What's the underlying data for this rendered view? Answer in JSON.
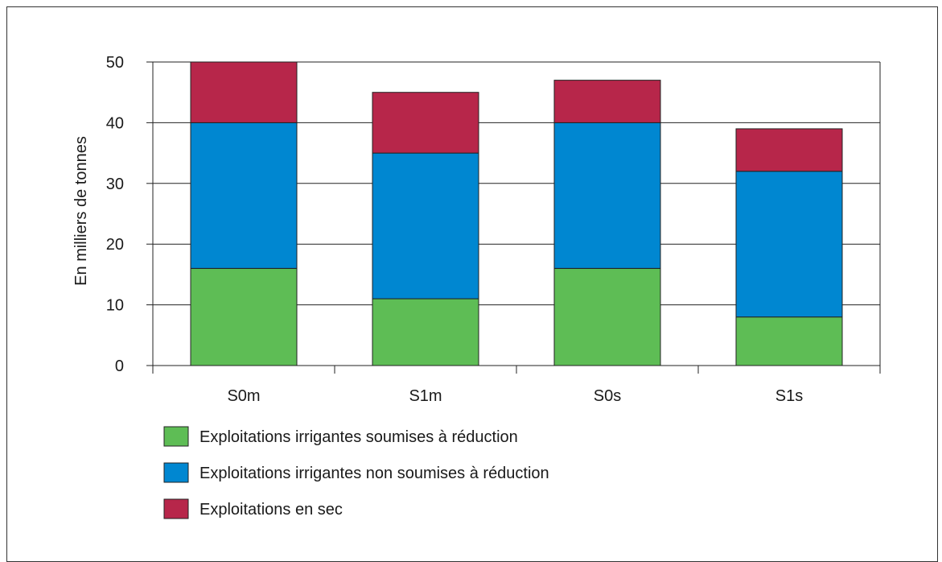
{
  "chart_data": {
    "type": "bar",
    "stacked": true,
    "categories": [
      "S0m",
      "S1m",
      "S0s",
      "S1s"
    ],
    "series": [
      {
        "name": "Exploitations irrigantes soumises à réduction",
        "color": "#5ebd55",
        "values": [
          16,
          11,
          16,
          8
        ]
      },
      {
        "name": "Exploitations irrigantes non soumises à réduction",
        "color": "#0087d1",
        "values": [
          24,
          24,
          24,
          24
        ]
      },
      {
        "name": "Exploitations en sec",
        "color": "#b7264a",
        "values": [
          10,
          10,
          7,
          7
        ]
      }
    ],
    "title": "",
    "xlabel": "",
    "ylabel": "En milliers de tonnes",
    "ylim": [
      0,
      50
    ],
    "yticks": [
      "0",
      "10",
      "20",
      "30",
      "40",
      "50"
    ],
    "grid": true,
    "legend_position": "bottom-left"
  }
}
